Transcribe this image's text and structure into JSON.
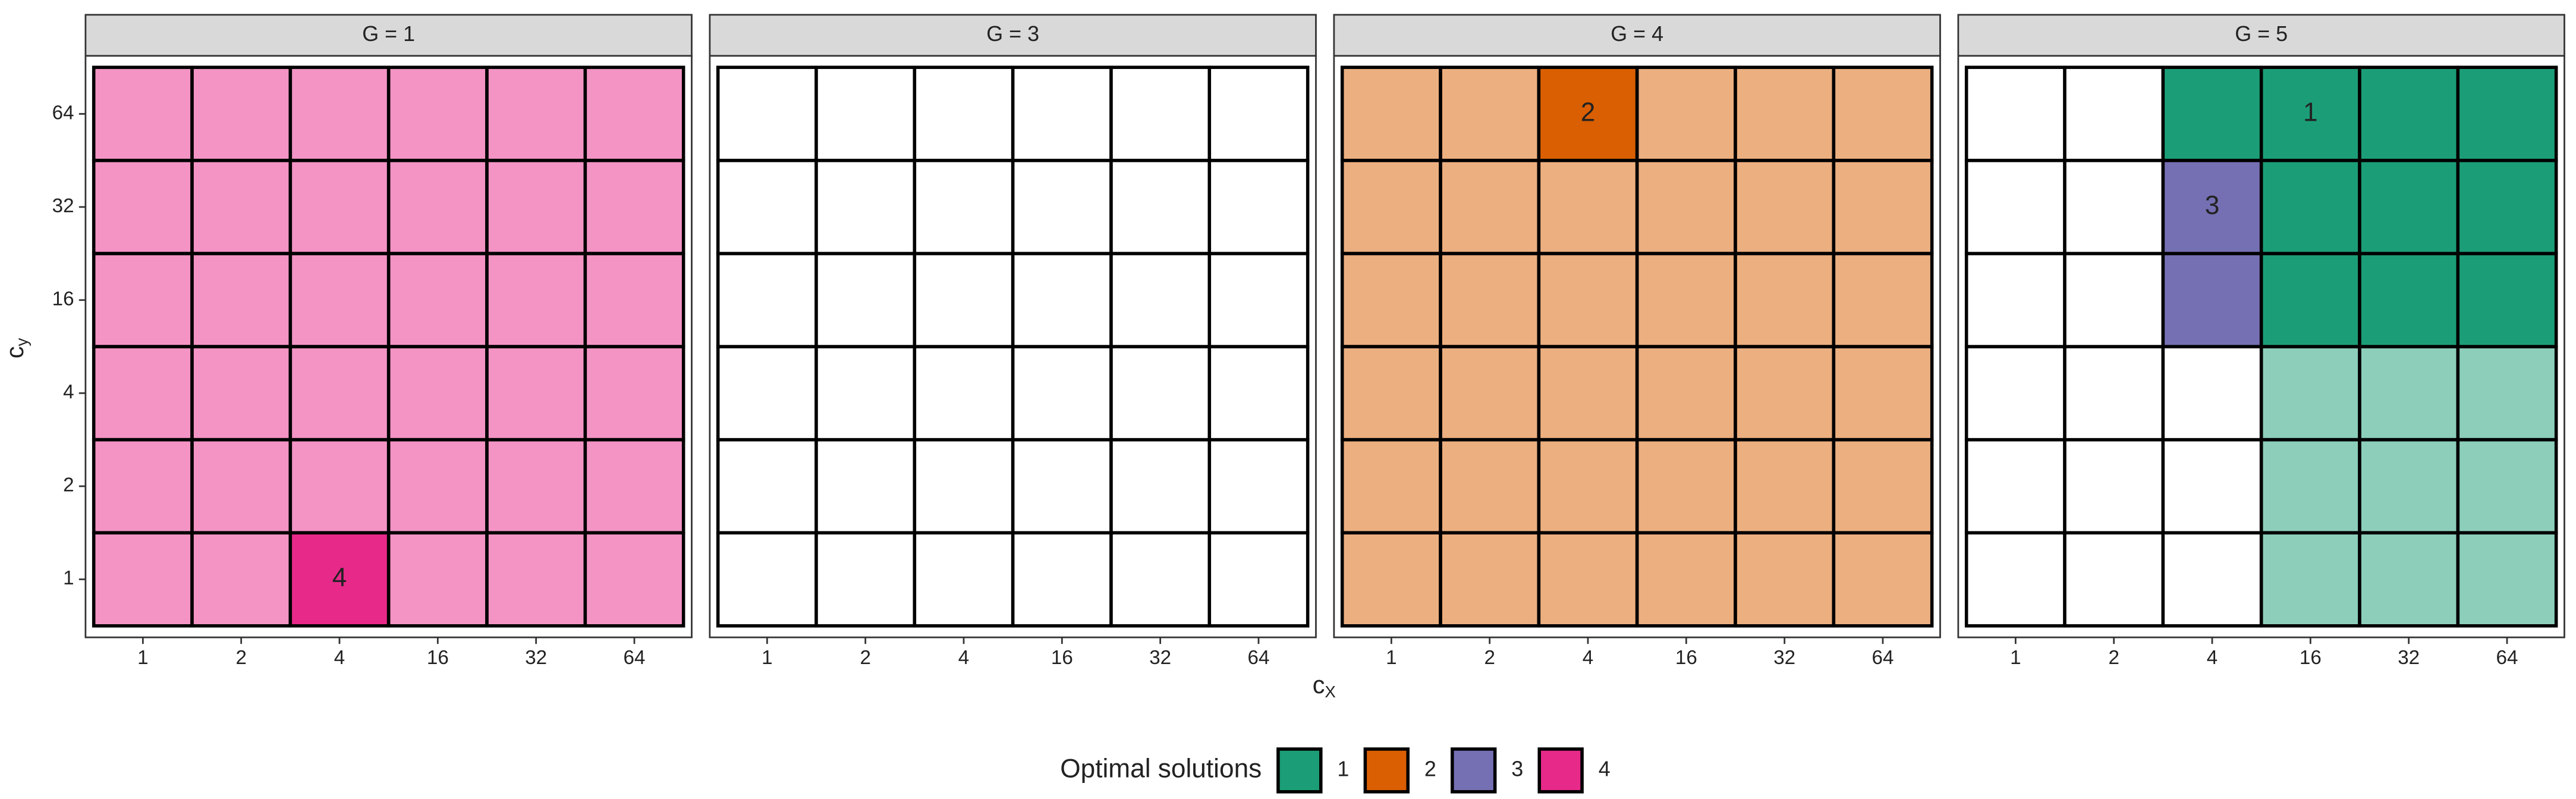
{
  "chart_data": {
    "type": "tile",
    "x_label": "c",
    "x_label_sub": "X",
    "y_label": "c",
    "y_label_sub": "y",
    "x_categories": [
      "1",
      "2",
      "4",
      "16",
      "32",
      "64"
    ],
    "y_categories": [
      "1",
      "2",
      "4",
      "16",
      "32",
      "64"
    ],
    "non_optimal_alpha": 0.5,
    "legend_title": "Optimal solutions",
    "legend": [
      {
        "name": "1",
        "color": "#1b9e77"
      },
      {
        "name": "2",
        "color": "#d95f02"
      },
      {
        "name": "3",
        "color": "#7570b3"
      },
      {
        "name": "4",
        "color": "#e7298a"
      }
    ],
    "facets": [
      {
        "title": "G = 1",
        "values": [
          [
            4,
            4,
            4,
            4,
            4,
            4
          ],
          [
            4,
            4,
            4,
            4,
            4,
            4
          ],
          [
            4,
            4,
            4,
            4,
            4,
            4
          ],
          [
            4,
            4,
            4,
            4,
            4,
            4
          ],
          [
            4,
            4,
            4,
            4,
            4,
            4
          ],
          [
            4,
            4,
            4,
            4,
            4,
            4
          ]
        ],
        "optimal": [
          [
            false,
            false,
            true,
            false,
            false,
            false
          ],
          [
            false,
            false,
            false,
            false,
            false,
            false
          ],
          [
            false,
            false,
            false,
            false,
            false,
            false
          ],
          [
            false,
            false,
            false,
            false,
            false,
            false
          ],
          [
            false,
            false,
            false,
            false,
            false,
            false
          ],
          [
            false,
            false,
            false,
            false,
            false,
            false
          ]
        ],
        "labels": [
          {
            "x": "4",
            "y": "1",
            "text": "4"
          }
        ]
      },
      {
        "title": "G = 3",
        "values": [
          [
            null,
            null,
            null,
            null,
            null,
            null
          ],
          [
            null,
            null,
            null,
            null,
            null,
            null
          ],
          [
            null,
            null,
            null,
            null,
            null,
            null
          ],
          [
            null,
            null,
            null,
            null,
            null,
            null
          ],
          [
            null,
            null,
            null,
            null,
            null,
            null
          ],
          [
            null,
            null,
            null,
            null,
            null,
            null
          ]
        ],
        "optimal": [
          [
            false,
            false,
            false,
            false,
            false,
            false
          ],
          [
            false,
            false,
            false,
            false,
            false,
            false
          ],
          [
            false,
            false,
            false,
            false,
            false,
            false
          ],
          [
            false,
            false,
            false,
            false,
            false,
            false
          ],
          [
            false,
            false,
            false,
            false,
            false,
            false
          ],
          [
            false,
            false,
            false,
            false,
            false,
            false
          ]
        ],
        "labels": []
      },
      {
        "title": "G = 4",
        "values": [
          [
            2,
            2,
            2,
            2,
            2,
            2
          ],
          [
            2,
            2,
            2,
            2,
            2,
            2
          ],
          [
            2,
            2,
            2,
            2,
            2,
            2
          ],
          [
            2,
            2,
            2,
            2,
            2,
            2
          ],
          [
            2,
            2,
            2,
            2,
            2,
            2
          ],
          [
            2,
            2,
            2,
            2,
            2,
            2
          ]
        ],
        "optimal": [
          [
            false,
            false,
            false,
            false,
            false,
            false
          ],
          [
            false,
            false,
            false,
            false,
            false,
            false
          ],
          [
            false,
            false,
            false,
            false,
            false,
            false
          ],
          [
            false,
            false,
            false,
            false,
            false,
            false
          ],
          [
            false,
            false,
            false,
            false,
            false,
            false
          ],
          [
            false,
            false,
            true,
            false,
            false,
            false
          ]
        ],
        "labels": [
          {
            "x": "4",
            "y": "64",
            "text": "2"
          }
        ]
      },
      {
        "title": "G = 5",
        "values": [
          [
            null,
            null,
            null,
            1,
            1,
            1
          ],
          [
            null,
            null,
            null,
            1,
            1,
            1
          ],
          [
            null,
            null,
            null,
            1,
            1,
            1
          ],
          [
            null,
            null,
            3,
            1,
            1,
            1
          ],
          [
            null,
            null,
            3,
            1,
            1,
            1
          ],
          [
            null,
            null,
            1,
            1,
            1,
            1
          ]
        ],
        "optimal": [
          [
            false,
            false,
            false,
            false,
            false,
            false
          ],
          [
            false,
            false,
            false,
            false,
            false,
            false
          ],
          [
            false,
            false,
            false,
            false,
            false,
            false
          ],
          [
            false,
            false,
            true,
            true,
            true,
            true
          ],
          [
            false,
            false,
            true,
            true,
            true,
            true
          ],
          [
            false,
            false,
            true,
            true,
            true,
            true
          ]
        ],
        "labels": [
          {
            "x": "16",
            "y": "64",
            "text": "1"
          },
          {
            "x": "4",
            "y": "32",
            "text": "3"
          }
        ]
      }
    ]
  }
}
